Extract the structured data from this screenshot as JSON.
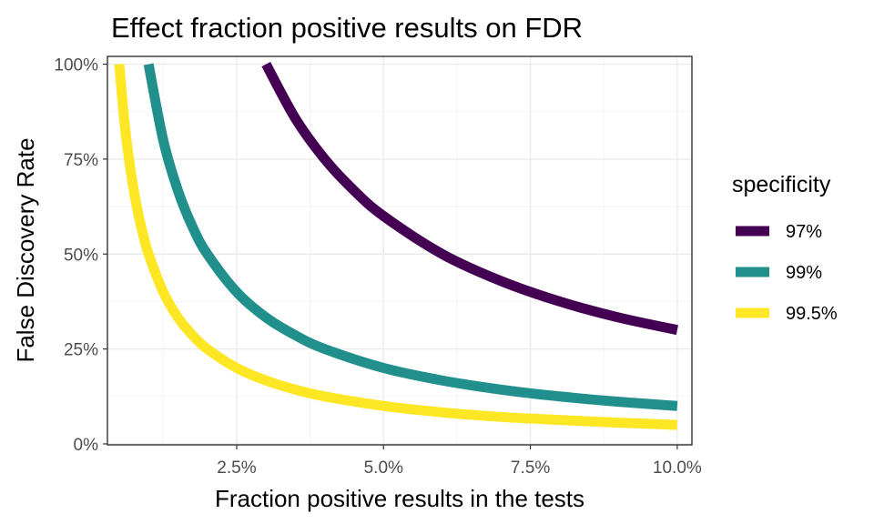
{
  "chart_data": {
    "type": "line",
    "title": "Effect fraction positive results on FDR",
    "xlabel": "Fraction positive results in the tests",
    "ylabel": "False Discovery Rate",
    "xlim": [
      0.003,
      0.1025
    ],
    "ylim": [
      -0.0025,
      1.0205
    ],
    "x_ticks": [
      0.025,
      0.05,
      0.075,
      0.1
    ],
    "x_tick_labels": [
      "2.5%",
      "5.0%",
      "7.5%",
      "10.0%"
    ],
    "y_ticks": [
      0,
      0.25,
      0.5,
      0.75,
      1
    ],
    "y_tick_labels": [
      "0%",
      "25%",
      "50%",
      "75%",
      "100%"
    ],
    "grid": true,
    "legend": {
      "title": "specificity",
      "position": "right"
    },
    "series": [
      {
        "name": "97%",
        "color": "#440154",
        "x": [
          0.03,
          0.035,
          0.04,
          0.045,
          0.05,
          0.06,
          0.07,
          0.08,
          0.09,
          0.1
        ],
        "y": [
          1.0,
          0.857,
          0.75,
          0.667,
          0.6,
          0.5,
          0.429,
          0.375,
          0.333,
          0.3
        ]
      },
      {
        "name": "99%",
        "color": "#21908C",
        "x": [
          0.01,
          0.0125,
          0.015,
          0.0175,
          0.02,
          0.025,
          0.03,
          0.035,
          0.04,
          0.05,
          0.06,
          0.07,
          0.08,
          0.09,
          0.1
        ],
        "y": [
          1.0,
          0.8,
          0.667,
          0.571,
          0.5,
          0.4,
          0.333,
          0.286,
          0.25,
          0.2,
          0.167,
          0.143,
          0.125,
          0.111,
          0.1
        ]
      },
      {
        "name": "99.5%",
        "color": "#FDE725",
        "x": [
          0.005,
          0.006,
          0.007,
          0.008,
          0.009,
          0.01,
          0.0125,
          0.015,
          0.0175,
          0.02,
          0.025,
          0.03,
          0.035,
          0.04,
          0.05,
          0.06,
          0.07,
          0.08,
          0.09,
          0.1
        ],
        "y": [
          1.0,
          0.833,
          0.714,
          0.625,
          0.556,
          0.5,
          0.4,
          0.333,
          0.286,
          0.25,
          0.2,
          0.167,
          0.143,
          0.125,
          0.1,
          0.083,
          0.071,
          0.063,
          0.056,
          0.05
        ]
      }
    ]
  }
}
